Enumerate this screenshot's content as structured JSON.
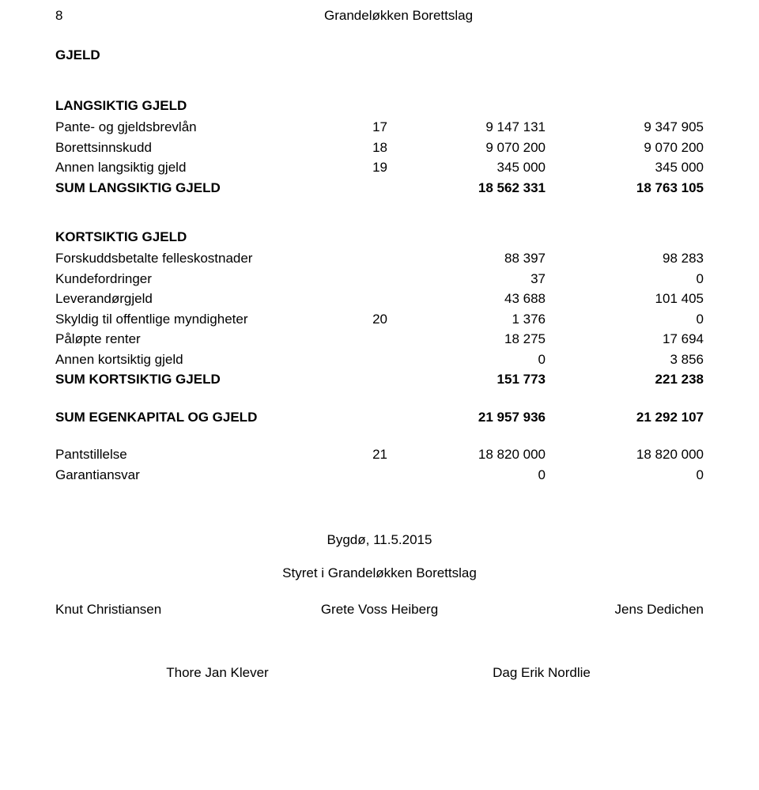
{
  "header": {
    "page_num": "8",
    "title": "Grandeløkken Borettslag"
  },
  "gjeld_heading": "GJELD",
  "langsiktig": {
    "heading": "LANGSIKTIG GJELD",
    "rows": [
      {
        "label": "Pante- og gjeldsbrevlån",
        "note": "17",
        "v1": "9 147 131",
        "v2": "9 347 905"
      },
      {
        "label": "Borettsinnskudd",
        "note": "18",
        "v1": "9 070 200",
        "v2": "9 070 200"
      },
      {
        "label": "Annen langsiktig gjeld",
        "note": "19",
        "v1": "345 000",
        "v2": "345 000"
      }
    ],
    "sum": {
      "label": "SUM LANGSIKTIG GJELD",
      "note": "",
      "v1": "18 562 331",
      "v2": "18 763 105"
    }
  },
  "kortsiktig": {
    "heading": "KORTSIKTIG GJELD",
    "rows": [
      {
        "label": "Forskuddsbetalte felleskostnader",
        "note": "",
        "v1": "88 397",
        "v2": "98 283"
      },
      {
        "label": "Kundefordringer",
        "note": "",
        "v1": "37",
        "v2": "0"
      },
      {
        "label": "Leverandørgjeld",
        "note": "",
        "v1": "43 688",
        "v2": "101 405"
      },
      {
        "label": "Skyldig til offentlige myndigheter",
        "note": "20",
        "v1": "1 376",
        "v2": "0"
      },
      {
        "label": "Påløpte renter",
        "note": "",
        "v1": "18 275",
        "v2": "17 694"
      },
      {
        "label": "Annen kortsiktig gjeld",
        "note": "",
        "v1": "0",
        "v2": "3 856"
      }
    ],
    "sum": {
      "label": "SUM KORTSIKTIG GJELD",
      "note": "",
      "v1": "151 773",
      "v2": "221 238"
    }
  },
  "sum_ek_gjeld": {
    "label": "SUM EGENKAPITAL OG GJELD",
    "v1": "21 957 936",
    "v2": "21 292 107"
  },
  "pants": {
    "label": "Pantstillelse",
    "note": "21",
    "v1": "18 820 000",
    "v2": "18 820 000"
  },
  "garanti": {
    "label": "Garantiansvar",
    "note": "",
    "v1": "0",
    "v2": "0"
  },
  "sign": {
    "place_date": "Bygdø, 11.5.2015",
    "board": "Styret i Grandeløkken Borettslag",
    "name1": "Knut Christiansen",
    "name2": "Grete Voss Heiberg",
    "name3": "Jens Dedichen",
    "name4": "Thore Jan Klever",
    "name5": "Dag Erik Nordlie"
  }
}
